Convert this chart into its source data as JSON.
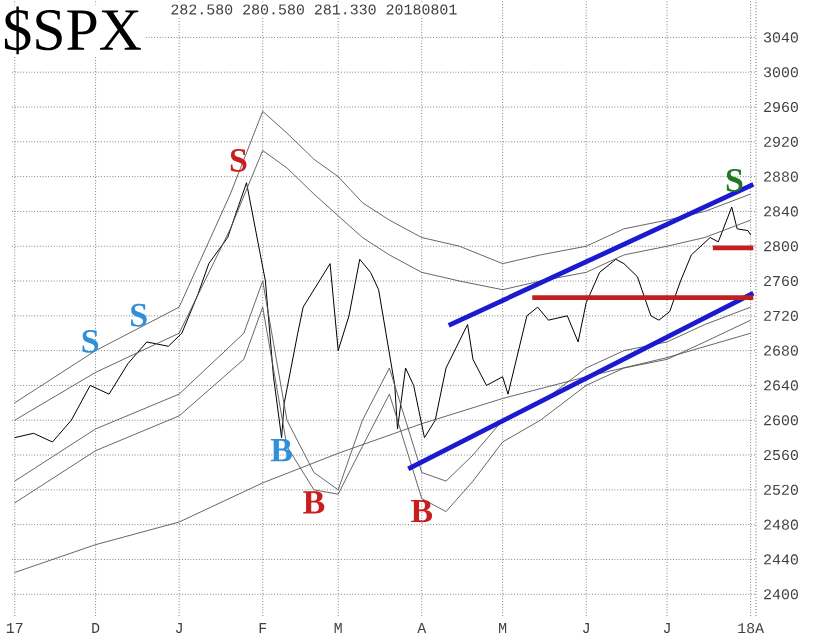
{
  "chart_data": {
    "type": "line",
    "title": "$SPX",
    "subtitle": "282.580   280.580   281.330        20180801",
    "xlim": [
      "2017-10-31",
      "2018-08-03"
    ],
    "ylim": [
      2375,
      3083
    ],
    "xticks": [
      {
        "value": "2017-11-01",
        "label": "17"
      },
      {
        "value": "2017-12-01",
        "label": "D"
      },
      {
        "value": "2018-01-01",
        "label": "J"
      },
      {
        "value": "2018-02-01",
        "label": "F"
      },
      {
        "value": "2018-03-01",
        "label": "M"
      },
      {
        "value": "2018-04-01",
        "label": "A"
      },
      {
        "value": "2018-05-01",
        "label": "M"
      },
      {
        "value": "2018-06-01",
        "label": "J"
      },
      {
        "value": "2018-07-01",
        "label": "J"
      },
      {
        "value": "2018-08-01",
        "label": "18A"
      }
    ],
    "yticks": [
      2400,
      2440,
      2480,
      2520,
      2560,
      2600,
      2640,
      2680,
      2720,
      2760,
      2800,
      2840,
      2880,
      2920,
      2960,
      3000,
      3040
    ],
    "grid": true,
    "marker": "none",
    "series": [
      {
        "color": "#000000",
        "x": [
          "2017-11-01",
          "2017-11-08",
          "2017-11-15",
          "2017-11-22",
          "2017-11-29",
          "2017-12-06",
          "2017-12-13",
          "2017-12-20",
          "2017-12-28",
          "2018-01-02",
          "2018-01-08",
          "2018-01-12",
          "2018-01-19",
          "2018-01-26",
          "2018-02-02",
          "2018-02-05",
          "2018-02-08",
          "2018-02-09",
          "2018-02-14",
          "2018-02-16",
          "2018-02-26",
          "2018-03-01",
          "2018-03-05",
          "2018-03-09",
          "2018-03-13",
          "2018-03-16",
          "2018-03-22",
          "2018-03-23",
          "2018-03-26",
          "2018-03-29",
          "2018-04-02",
          "2018-04-06",
          "2018-04-10",
          "2018-04-18",
          "2018-04-20",
          "2018-04-25",
          "2018-05-01",
          "2018-05-03",
          "2018-05-10",
          "2018-05-14",
          "2018-05-18",
          "2018-05-25",
          "2018-05-29",
          "2018-06-01",
          "2018-06-06",
          "2018-06-12",
          "2018-06-15",
          "2018-06-20",
          "2018-06-25",
          "2018-06-28",
          "2018-07-02",
          "2018-07-06",
          "2018-07-10",
          "2018-07-17",
          "2018-07-20",
          "2018-07-25",
          "2018-07-27",
          "2018-07-31",
          "2018-08-01"
        ],
        "values": [
          2580,
          2585,
          2575,
          2600,
          2640,
          2630,
          2665,
          2690,
          2685,
          2700,
          2745,
          2780,
          2810,
          2873,
          2760,
          2650,
          2580,
          2620,
          2700,
          2730,
          2780,
          2680,
          2720,
          2785,
          2770,
          2750,
          2640,
          2590,
          2660,
          2640,
          2580,
          2600,
          2660,
          2710,
          2670,
          2640,
          2650,
          2630,
          2720,
          2730,
          2715,
          2720,
          2690,
          2735,
          2770,
          2785,
          2780,
          2765,
          2720,
          2715,
          2725,
          2760,
          2790,
          2810,
          2805,
          2845,
          2820,
          2818,
          2813
        ]
      },
      {
        "color": "#555555",
        "x": [
          "2017-11-01",
          "2017-12-01",
          "2018-01-01",
          "2018-02-01",
          "2018-03-01",
          "2018-04-01",
          "2018-05-01",
          "2018-06-01",
          "2018-07-01",
          "2018-08-01"
        ],
        "values": [
          2425,
          2457,
          2483,
          2528,
          2562,
          2596,
          2625,
          2650,
          2672,
          2700
        ]
      },
      {
        "color": "#555555",
        "x": [
          "2017-11-01",
          "2017-12-01",
          "2018-01-01",
          "2018-01-20",
          "2018-02-01",
          "2018-02-10",
          "2018-02-20",
          "2018-03-01",
          "2018-03-10",
          "2018-03-20",
          "2018-04-01",
          "2018-04-15",
          "2018-05-01",
          "2018-05-15",
          "2018-06-01",
          "2018-06-15",
          "2018-07-01",
          "2018-07-15",
          "2018-08-01"
        ],
        "values": [
          2620,
          2680,
          2730,
          2860,
          2955,
          2930,
          2900,
          2880,
          2850,
          2830,
          2810,
          2800,
          2780,
          2790,
          2800,
          2820,
          2830,
          2840,
          2860
        ]
      },
      {
        "color": "#555555",
        "x": [
          "2017-11-01",
          "2017-12-01",
          "2018-01-01",
          "2018-01-20",
          "2018-02-01",
          "2018-02-10",
          "2018-02-20",
          "2018-03-01",
          "2018-03-10",
          "2018-03-20",
          "2018-04-01",
          "2018-04-15",
          "2018-05-01",
          "2018-05-15",
          "2018-06-01",
          "2018-06-15",
          "2018-07-01",
          "2018-07-15",
          "2018-08-01"
        ],
        "values": [
          2600,
          2655,
          2700,
          2820,
          2910,
          2890,
          2860,
          2835,
          2810,
          2790,
          2770,
          2760,
          2750,
          2760,
          2770,
          2790,
          2800,
          2810,
          2830
        ]
      },
      {
        "color": "#555555",
        "x": [
          "2017-11-01",
          "2017-12-01",
          "2018-01-01",
          "2018-01-25",
          "2018-02-01",
          "2018-02-10",
          "2018-02-20",
          "2018-03-01",
          "2018-03-10",
          "2018-03-20",
          "2018-04-01",
          "2018-04-10",
          "2018-04-20",
          "2018-05-01",
          "2018-05-15",
          "2018-06-01",
          "2018-06-15",
          "2018-07-01",
          "2018-07-15",
          "2018-08-01"
        ],
        "values": [
          2530,
          2590,
          2630,
          2700,
          2760,
          2600,
          2540,
          2520,
          2600,
          2660,
          2540,
          2530,
          2560,
          2600,
          2620,
          2660,
          2680,
          2690,
          2710,
          2730
        ]
      },
      {
        "color": "#555555",
        "x": [
          "2017-11-01",
          "2017-12-01",
          "2018-01-01",
          "2018-01-25",
          "2018-02-01",
          "2018-02-10",
          "2018-02-20",
          "2018-03-01",
          "2018-03-10",
          "2018-03-20",
          "2018-04-01",
          "2018-04-10",
          "2018-04-20",
          "2018-05-01",
          "2018-05-15",
          "2018-06-01",
          "2018-06-15",
          "2018-07-01",
          "2018-07-15",
          "2018-08-01"
        ],
        "values": [
          2505,
          2565,
          2605,
          2670,
          2730,
          2570,
          2520,
          2515,
          2570,
          2630,
          2510,
          2495,
          2530,
          2575,
          2600,
          2640,
          2660,
          2670,
          2690,
          2715
        ]
      },
      {
        "color": "#1a1ad0",
        "x": [
          "2018-04-11",
          "2018-08-02"
        ],
        "values": [
          2709,
          2871
        ]
      },
      {
        "color": "#1a1ad0",
        "x": [
          "2018-03-27",
          "2018-08-02"
        ],
        "values": [
          2544,
          2746
        ]
      },
      {
        "color": "#c02020",
        "x": [
          "2018-05-12",
          "2018-08-02"
        ],
        "values": [
          2741,
          2741
        ]
      },
      {
        "color": "#c02020",
        "x": [
          "2018-07-18",
          "2018-08-02"
        ],
        "values": [
          2798,
          2798
        ]
      }
    ],
    "annotations": [
      {
        "text": "S",
        "x": "2017-11-29",
        "y": 2676
      },
      {
        "text": "S",
        "x": "2017-12-17",
        "y": 2706
      },
      {
        "text": "S",
        "x": "2018-01-23",
        "y": 2884
      },
      {
        "text": "B",
        "x": "2018-02-08",
        "y": 2580
      },
      {
        "text": "B",
        "x": "2018-02-20",
        "y": 2520
      },
      {
        "text": "B",
        "x": "2018-04-01",
        "y": 2510
      },
      {
        "text": "S",
        "x": "2018-07-26",
        "y": 2861
      }
    ]
  }
}
